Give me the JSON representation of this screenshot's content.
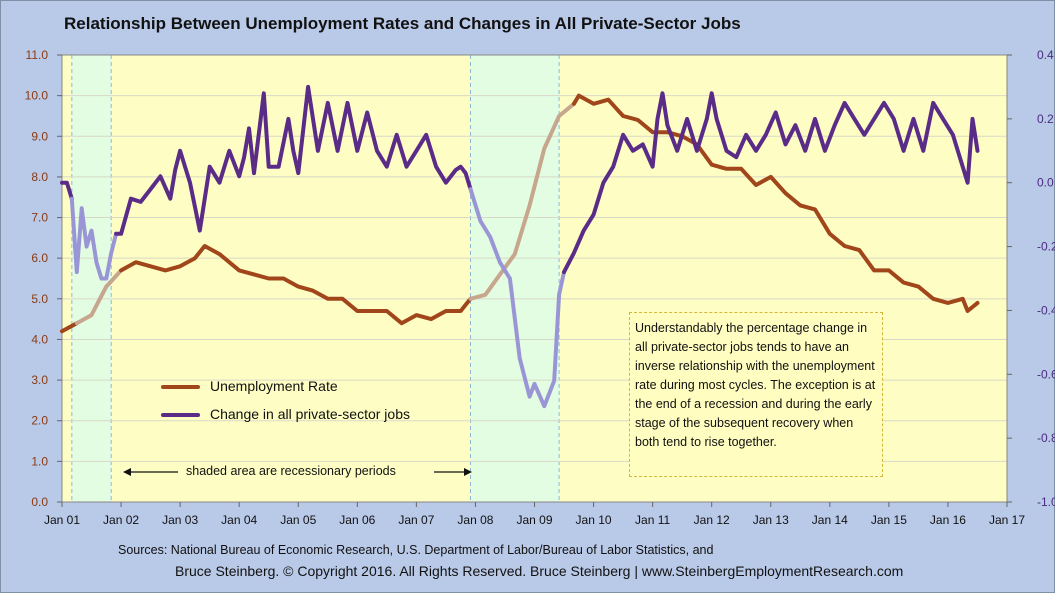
{
  "title": "Relationship Between Unemployment Rates and Changes in All Private-Sector Jobs",
  "colors": {
    "background": "#b9c9e8",
    "plot_area": "#fefec4",
    "recession_shade": "#e3fde3",
    "unemployment": "#a0461a",
    "unemployment_faded": "#c6a68c",
    "jobs": "#5a2c88",
    "jobs_faded": "#9a96d6"
  },
  "legend": {
    "unemployment": "Unemployment Rate",
    "jobs": "Change in all private-sector jobs"
  },
  "shade_note": "shaded area are recessionary periods",
  "annotation": "Understandably the percentage change in all private-sector jobs tends to have an inverse relationship with the unemployment rate during most cycles. The exception is at the end of a recession and during the early stage of the subsequent recovery when both tend to rise together.",
  "sources": {
    "line1": "Sources: National Bureau of Economic Research, U.S. Department of Labor/Bureau of Labor Statistics, and",
    "line2": "Bruce Steinberg.  © Copyright 2016. All Rights Reserved. Bruce Steinberg | www.SteinbergEmploymentResearch.com"
  },
  "chart_data": {
    "type": "line",
    "x_labels": [
      "Jan 01",
      "Jan 02",
      "Jan 03",
      "Jan 04",
      "Jan 05",
      "Jan 06",
      "Jan 07",
      "Jan 08",
      "Jan 09",
      "Jan 10",
      "Jan 11",
      "Jan 12",
      "Jan 13",
      "Jan 14",
      "Jan 15",
      "Jan 16",
      "Jan 17"
    ],
    "y_left_ticks": [
      "0.0",
      "1.0",
      "2.0",
      "3.0",
      "4.0",
      "5.0",
      "6.0",
      "7.0",
      "8.0",
      "9.0",
      "10.0",
      "11.0"
    ],
    "y_right_ticks": [
      "-1.0",
      "-0.8",
      "-0.6",
      "-0.4",
      "-0.2",
      "0.0",
      "0.2",
      "0.4"
    ],
    "y_left_range": [
      0,
      11
    ],
    "y_right_range": [
      -1.0,
      0.4
    ],
    "x_range": [
      "2001-01",
      "2017-01"
    ],
    "recessions": [
      [
        "2001-03",
        "2001-11"
      ],
      [
        "2007-12",
        "2009-06"
      ]
    ],
    "series": [
      {
        "name": "Unemployment Rate",
        "axis": "left",
        "points": [
          [
            "2001-01",
            4.2
          ],
          [
            "2001-04",
            4.4
          ],
          [
            "2001-07",
            4.6
          ],
          [
            "2001-10",
            5.3
          ],
          [
            "2002-01",
            5.7
          ],
          [
            "2002-04",
            5.9
          ],
          [
            "2002-07",
            5.8
          ],
          [
            "2002-10",
            5.7
          ],
          [
            "2003-01",
            5.8
          ],
          [
            "2003-04",
            6.0
          ],
          [
            "2003-06",
            6.3
          ],
          [
            "2003-09",
            6.1
          ],
          [
            "2004-01",
            5.7
          ],
          [
            "2004-04",
            5.6
          ],
          [
            "2004-07",
            5.5
          ],
          [
            "2004-10",
            5.5
          ],
          [
            "2005-01",
            5.3
          ],
          [
            "2005-04",
            5.2
          ],
          [
            "2005-07",
            5.0
          ],
          [
            "2005-10",
            5.0
          ],
          [
            "2006-01",
            4.7
          ],
          [
            "2006-04",
            4.7
          ],
          [
            "2006-07",
            4.7
          ],
          [
            "2006-10",
            4.4
          ],
          [
            "2007-01",
            4.6
          ],
          [
            "2007-04",
            4.5
          ],
          [
            "2007-07",
            4.7
          ],
          [
            "2007-10",
            4.7
          ],
          [
            "2007-12",
            5.0
          ],
          [
            "2008-03",
            5.1
          ],
          [
            "2008-06",
            5.6
          ],
          [
            "2008-09",
            6.1
          ],
          [
            "2008-12",
            7.3
          ],
          [
            "2009-03",
            8.7
          ],
          [
            "2009-06",
            9.5
          ],
          [
            "2009-09",
            9.8
          ],
          [
            "2009-10",
            10.0
          ],
          [
            "2010-01",
            9.8
          ],
          [
            "2010-04",
            9.9
          ],
          [
            "2010-07",
            9.5
          ],
          [
            "2010-10",
            9.4
          ],
          [
            "2011-01",
            9.1
          ],
          [
            "2011-04",
            9.1
          ],
          [
            "2011-07",
            9.0
          ],
          [
            "2011-10",
            8.8
          ],
          [
            "2012-01",
            8.3
          ],
          [
            "2012-04",
            8.2
          ],
          [
            "2012-07",
            8.2
          ],
          [
            "2012-10",
            7.8
          ],
          [
            "2013-01",
            8.0
          ],
          [
            "2013-04",
            7.6
          ],
          [
            "2013-07",
            7.3
          ],
          [
            "2013-10",
            7.2
          ],
          [
            "2014-01",
            6.6
          ],
          [
            "2014-04",
            6.3
          ],
          [
            "2014-07",
            6.2
          ],
          [
            "2014-10",
            5.7
          ],
          [
            "2015-01",
            5.7
          ],
          [
            "2015-04",
            5.4
          ],
          [
            "2015-07",
            5.3
          ],
          [
            "2015-10",
            5.0
          ],
          [
            "2016-01",
            4.9
          ],
          [
            "2016-04",
            5.0
          ],
          [
            "2016-05",
            4.7
          ],
          [
            "2016-07",
            4.9
          ]
        ]
      },
      {
        "name": "Change in all private-sector jobs",
        "axis": "right",
        "points": [
          [
            "2001-01",
            0.0
          ],
          [
            "2001-02",
            0.0
          ],
          [
            "2001-03",
            -0.05
          ],
          [
            "2001-04",
            -0.28
          ],
          [
            "2001-05",
            -0.08
          ],
          [
            "2001-06",
            -0.2
          ],
          [
            "2001-07",
            -0.15
          ],
          [
            "2001-08",
            -0.25
          ],
          [
            "2001-09",
            -0.3
          ],
          [
            "2001-10",
            -0.3
          ],
          [
            "2001-11",
            -0.22
          ],
          [
            "2001-12",
            -0.16
          ],
          [
            "2002-01",
            -0.16
          ],
          [
            "2002-03",
            -0.05
          ],
          [
            "2002-05",
            -0.06
          ],
          [
            "2002-07",
            -0.02
          ],
          [
            "2002-09",
            0.02
          ],
          [
            "2002-11",
            -0.05
          ],
          [
            "2002-12",
            0.04
          ],
          [
            "2003-01",
            0.1
          ],
          [
            "2003-03",
            0.0
          ],
          [
            "2003-05",
            -0.15
          ],
          [
            "2003-07",
            0.05
          ],
          [
            "2003-09",
            0.0
          ],
          [
            "2003-11",
            0.1
          ],
          [
            "2004-01",
            0.02
          ],
          [
            "2004-02",
            0.08
          ],
          [
            "2004-03",
            0.17
          ],
          [
            "2004-04",
            0.03
          ],
          [
            "2004-06",
            0.28
          ],
          [
            "2004-07",
            0.05
          ],
          [
            "2004-09",
            0.05
          ],
          [
            "2004-11",
            0.2
          ],
          [
            "2004-12",
            0.1
          ],
          [
            "2005-01",
            0.03
          ],
          [
            "2005-03",
            0.3
          ],
          [
            "2005-05",
            0.1
          ],
          [
            "2005-07",
            0.25
          ],
          [
            "2005-09",
            0.1
          ],
          [
            "2005-11",
            0.25
          ],
          [
            "2006-01",
            0.1
          ],
          [
            "2006-03",
            0.22
          ],
          [
            "2006-05",
            0.1
          ],
          [
            "2006-07",
            0.05
          ],
          [
            "2006-09",
            0.15
          ],
          [
            "2006-11",
            0.05
          ],
          [
            "2007-01",
            0.1
          ],
          [
            "2007-03",
            0.15
          ],
          [
            "2007-05",
            0.05
          ],
          [
            "2007-07",
            0.0
          ],
          [
            "2007-09",
            0.04
          ],
          [
            "2007-10",
            0.05
          ],
          [
            "2007-11",
            0.03
          ],
          [
            "2007-12",
            -0.02
          ],
          [
            "2008-02",
            -0.12
          ],
          [
            "2008-04",
            -0.17
          ],
          [
            "2008-06",
            -0.25
          ],
          [
            "2008-08",
            -0.3
          ],
          [
            "2008-10",
            -0.55
          ],
          [
            "2008-12",
            -0.67
          ],
          [
            "2009-01",
            -0.63
          ],
          [
            "2009-03",
            -0.7
          ],
          [
            "2009-05",
            -0.62
          ],
          [
            "2009-06",
            -0.35
          ],
          [
            "2009-07",
            -0.28
          ],
          [
            "2009-09",
            -0.22
          ],
          [
            "2009-11",
            -0.15
          ],
          [
            "2010-01",
            -0.1
          ],
          [
            "2010-03",
            0.0
          ],
          [
            "2010-05",
            0.05
          ],
          [
            "2010-07",
            0.15
          ],
          [
            "2010-09",
            0.1
          ],
          [
            "2010-11",
            0.12
          ],
          [
            "2011-01",
            0.05
          ],
          [
            "2011-02",
            0.2
          ],
          [
            "2011-03",
            0.28
          ],
          [
            "2011-04",
            0.18
          ],
          [
            "2011-06",
            0.1
          ],
          [
            "2011-08",
            0.2
          ],
          [
            "2011-10",
            0.1
          ],
          [
            "2011-12",
            0.2
          ],
          [
            "2012-01",
            0.28
          ],
          [
            "2012-02",
            0.2
          ],
          [
            "2012-04",
            0.1
          ],
          [
            "2012-06",
            0.08
          ],
          [
            "2012-08",
            0.15
          ],
          [
            "2012-10",
            0.1
          ],
          [
            "2012-12",
            0.15
          ],
          [
            "2013-02",
            0.22
          ],
          [
            "2013-04",
            0.12
          ],
          [
            "2013-06",
            0.18
          ],
          [
            "2013-08",
            0.1
          ],
          [
            "2013-10",
            0.2
          ],
          [
            "2013-12",
            0.1
          ],
          [
            "2014-02",
            0.18
          ],
          [
            "2014-04",
            0.25
          ],
          [
            "2014-06",
            0.2
          ],
          [
            "2014-08",
            0.15
          ],
          [
            "2014-10",
            0.2
          ],
          [
            "2014-12",
            0.25
          ],
          [
            "2015-02",
            0.2
          ],
          [
            "2015-04",
            0.1
          ],
          [
            "2015-06",
            0.2
          ],
          [
            "2015-08",
            0.1
          ],
          [
            "2015-10",
            0.25
          ],
          [
            "2015-12",
            0.2
          ],
          [
            "2016-02",
            0.15
          ],
          [
            "2016-04",
            0.05
          ],
          [
            "2016-05",
            0.0
          ],
          [
            "2016-06",
            0.2
          ],
          [
            "2016-07",
            0.1
          ]
        ]
      }
    ]
  }
}
